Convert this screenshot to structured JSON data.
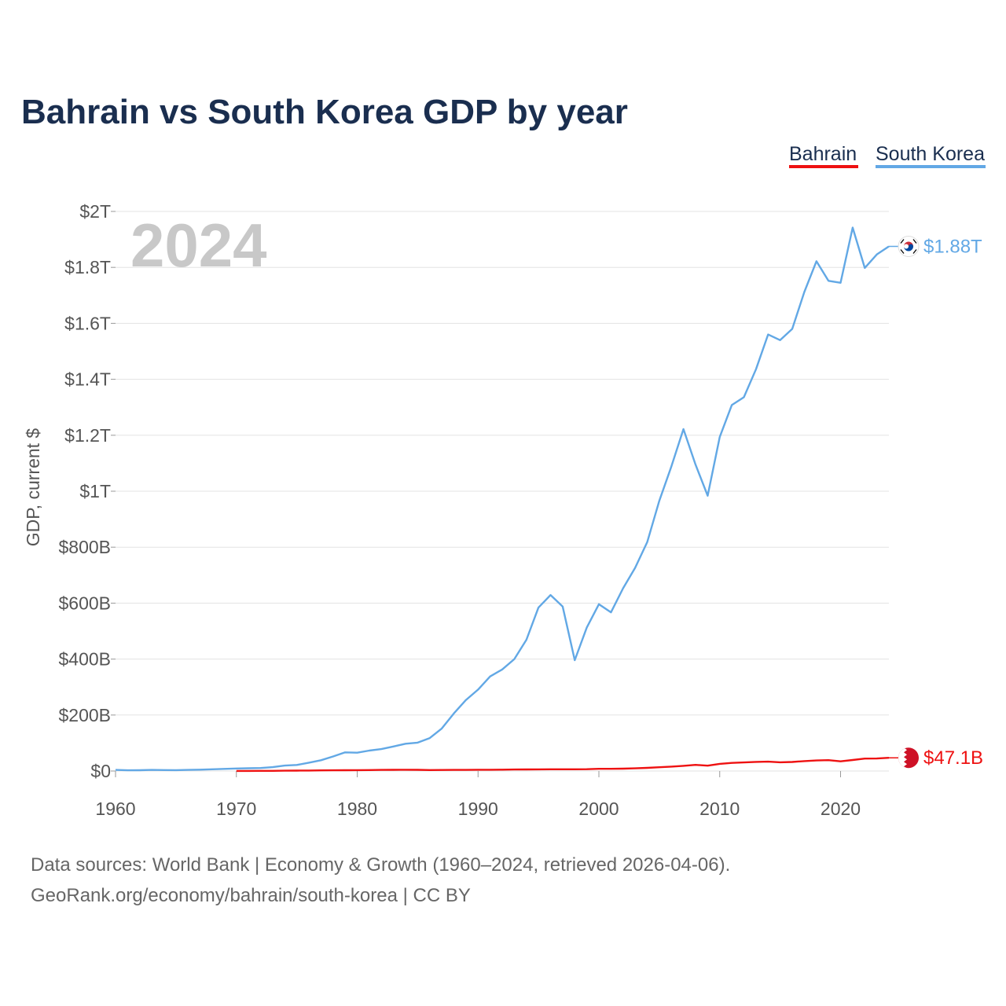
{
  "page": {
    "title": "Bahrain vs South Korea GDP by year",
    "year_watermark": "2024",
    "source_line1": "Data sources: World Bank | Economy & Growth (1960–2024, retrieved 2026-04-06).",
    "source_line2": "GeoRank.org/economy/bahrain/south-korea | CC BY"
  },
  "colors": {
    "bahrain": "#ee1111",
    "south_korea": "#62a8e5",
    "title": "#1a2e4f"
  },
  "chart_data": {
    "type": "line",
    "title": "Bahrain vs South Korea GDP by year",
    "xlabel": "",
    "ylabel": "GDP, current $",
    "xlim": [
      1960,
      2024
    ],
    "ylim": [
      0,
      2000
    ],
    "value_unit": "billions of current US$",
    "x_ticks": [
      1960,
      1970,
      1980,
      1990,
      2000,
      2010,
      2020
    ],
    "y_ticks": [
      {
        "value": 0,
        "label": "$0"
      },
      {
        "value": 200,
        "label": "$200B"
      },
      {
        "value": 400,
        "label": "$400B"
      },
      {
        "value": 600,
        "label": "$600B"
      },
      {
        "value": 800,
        "label": "$800B"
      },
      {
        "value": 1000,
        "label": "$1T"
      },
      {
        "value": 1200,
        "label": "$1.2T"
      },
      {
        "value": 1400,
        "label": "$1.4T"
      },
      {
        "value": 1600,
        "label": "$1.6T"
      },
      {
        "value": 1800,
        "label": "$1.8T"
      },
      {
        "value": 2000,
        "label": "$2T"
      }
    ],
    "legend": [
      "Bahrain",
      "South Korea"
    ],
    "legend_position": "top-right",
    "series": [
      {
        "name": "Bahrain",
        "key": "bahrain",
        "end_label": "$47.1B",
        "points": [
          [
            1970,
            0.4
          ],
          [
            1971,
            0.4
          ],
          [
            1972,
            0.5
          ],
          [
            1973,
            0.6
          ],
          [
            1974,
            1.0
          ],
          [
            1975,
            1.3
          ],
          [
            1976,
            1.8
          ],
          [
            1977,
            2.3
          ],
          [
            1978,
            2.6
          ],
          [
            1979,
            2.8
          ],
          [
            1980,
            3.1
          ],
          [
            1981,
            3.5
          ],
          [
            1982,
            4.0
          ],
          [
            1983,
            4.2
          ],
          [
            1984,
            4.4
          ],
          [
            1985,
            4.1
          ],
          [
            1986,
            3.4
          ],
          [
            1987,
            3.6
          ],
          [
            1988,
            3.8
          ],
          [
            1989,
            4.0
          ],
          [
            1990,
            4.5
          ],
          [
            1991,
            4.6
          ],
          [
            1992,
            4.8
          ],
          [
            1993,
            5.2
          ],
          [
            1994,
            5.5
          ],
          [
            1995,
            5.8
          ],
          [
            1996,
            6.1
          ],
          [
            1997,
            6.3
          ],
          [
            1998,
            6.2
          ],
          [
            1999,
            6.6
          ],
          [
            2000,
            8.0
          ],
          [
            2001,
            8.0
          ],
          [
            2002,
            8.5
          ],
          [
            2003,
            9.6
          ],
          [
            2004,
            11.2
          ],
          [
            2005,
            13.5
          ],
          [
            2006,
            15.8
          ],
          [
            2007,
            18.5
          ],
          [
            2008,
            22.0
          ],
          [
            2009,
            19.0
          ],
          [
            2010,
            25.7
          ],
          [
            2011,
            28.8
          ],
          [
            2012,
            30.7
          ],
          [
            2013,
            32.5
          ],
          [
            2014,
            33.4
          ],
          [
            2015,
            31.1
          ],
          [
            2016,
            32.2
          ],
          [
            2017,
            35.5
          ],
          [
            2018,
            37.7
          ],
          [
            2019,
            38.7
          ],
          [
            2020,
            34.6
          ],
          [
            2021,
            39.3
          ],
          [
            2022,
            44.4
          ],
          [
            2023,
            44.7
          ],
          [
            2024,
            47.1
          ]
        ]
      },
      {
        "name": "South Korea",
        "key": "south_korea",
        "end_label": "$1.88T",
        "points": [
          [
            1960,
            4.0
          ],
          [
            1961,
            2.4
          ],
          [
            1962,
            2.8
          ],
          [
            1963,
            3.8
          ],
          [
            1964,
            3.5
          ],
          [
            1965,
            3.1
          ],
          [
            1966,
            3.9
          ],
          [
            1967,
            4.8
          ],
          [
            1968,
            6.1
          ],
          [
            1969,
            7.7
          ],
          [
            1970,
            9.0
          ],
          [
            1971,
            9.9
          ],
          [
            1972,
            10.8
          ],
          [
            1973,
            13.8
          ],
          [
            1974,
            19.5
          ],
          [
            1975,
            21.7
          ],
          [
            1976,
            29.8
          ],
          [
            1977,
            38.4
          ],
          [
            1978,
            52.0
          ],
          [
            1979,
            66.7
          ],
          [
            1980,
            65.4
          ],
          [
            1981,
            72.9
          ],
          [
            1982,
            78.4
          ],
          [
            1983,
            87.7
          ],
          [
            1984,
            97.5
          ],
          [
            1985,
            101.3
          ],
          [
            1986,
            117.7
          ],
          [
            1987,
            151.9
          ],
          [
            1988,
            205.9
          ],
          [
            1989,
            254.0
          ],
          [
            1990,
            291.0
          ],
          [
            1991,
            338.0
          ],
          [
            1992,
            363.0
          ],
          [
            1993,
            400.0
          ],
          [
            1994,
            469.0
          ],
          [
            1995,
            584.0
          ],
          [
            1996,
            629.0
          ],
          [
            1997,
            588.0
          ],
          [
            1998,
            396.0
          ],
          [
            1999,
            513.0
          ],
          [
            2000,
            596.0
          ],
          [
            2001,
            567.0
          ],
          [
            2002,
            653.0
          ],
          [
            2003,
            726.0
          ],
          [
            2004,
            818.0
          ],
          [
            2005,
            966.0
          ],
          [
            2006,
            1089.0
          ],
          [
            2007,
            1222.0
          ],
          [
            2008,
            1095.0
          ],
          [
            2009,
            984.0
          ],
          [
            2010,
            1194.0
          ],
          [
            2011,
            1308.0
          ],
          [
            2012,
            1336.0
          ],
          [
            2013,
            1436.0
          ],
          [
            2014,
            1560.0
          ],
          [
            2015,
            1540.0
          ],
          [
            2016,
            1580.0
          ],
          [
            2017,
            1712.0
          ],
          [
            2018,
            1822.0
          ],
          [
            2019,
            1752.0
          ],
          [
            2020,
            1745.0
          ],
          [
            2021,
            1942.0
          ],
          [
            2022,
            1798.0
          ],
          [
            2023,
            1846.0
          ],
          [
            2024,
            1875.0
          ]
        ]
      }
    ]
  }
}
